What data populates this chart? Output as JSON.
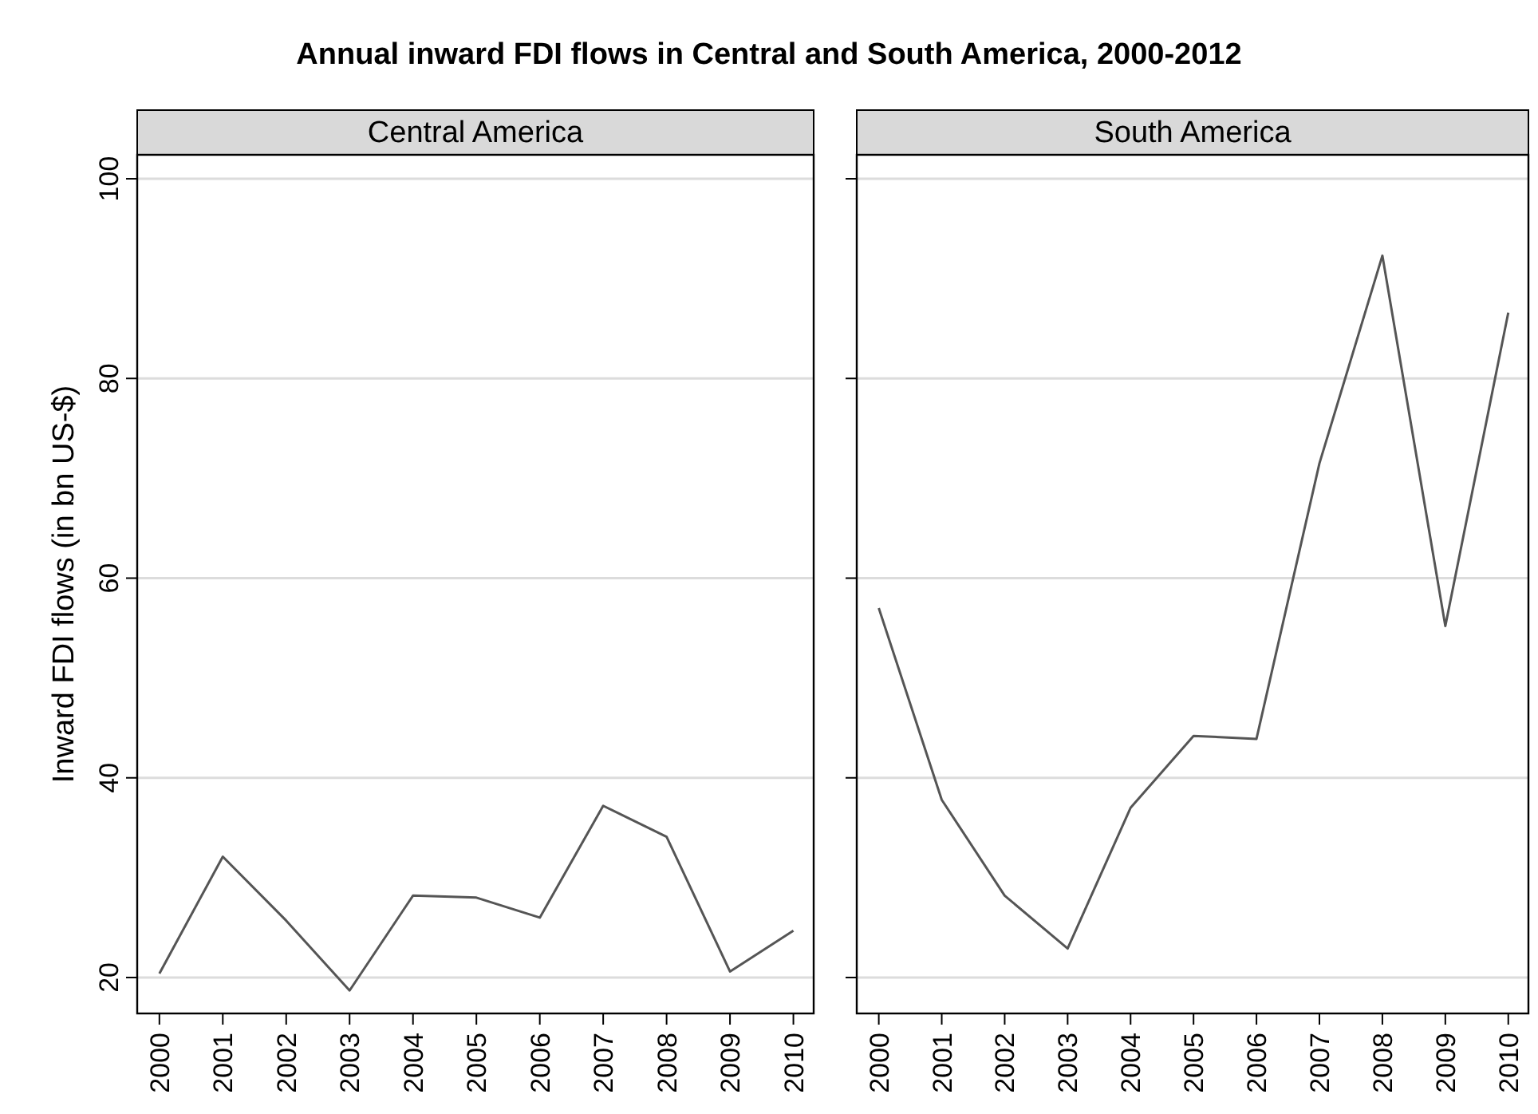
{
  "chart_data": [
    {
      "type": "line",
      "title": "Annual inward FDI flows in Central and South America, 2000-2012",
      "subtitle": "Central America",
      "ylabel": "Inward FDI flows (in bn US-$)",
      "x": [
        2000,
        2001,
        2002,
        2003,
        2004,
        2005,
        2006,
        2007,
        2008,
        2009,
        2010
      ],
      "series": [
        {
          "color": "#555555",
          "values": [
            20.4,
            32.1,
            25.7,
            18.7,
            28.2,
            28.0,
            26.0,
            37.2,
            34.1,
            20.6,
            24.7
          ]
        }
      ],
      "xlim": [
        1999.65,
        2010.32
      ],
      "xticks": [
        2000,
        2001,
        2002,
        2003,
        2004,
        2005,
        2006,
        2007,
        2008,
        2009,
        2010
      ],
      "ylim": [
        16.4,
        102.4
      ],
      "yticks": [
        20,
        40,
        60,
        80,
        100
      ],
      "grid": "y"
    },
    {
      "type": "line",
      "subtitle": "South America",
      "x": [
        2000,
        2001,
        2002,
        2003,
        2004,
        2005,
        2006,
        2007,
        2008,
        2009,
        2010
      ],
      "series": [
        {
          "color": "#555555",
          "values": [
            57.0,
            37.8,
            28.2,
            22.9,
            37.0,
            44.2,
            43.9,
            71.5,
            92.3,
            55.2,
            86.6
          ]
        }
      ],
      "xlim": [
        1999.65,
        2010.32
      ],
      "xticks": [
        2000,
        2001,
        2002,
        2003,
        2004,
        2005,
        2006,
        2007,
        2008,
        2009,
        2010
      ],
      "ylim": [
        16.4,
        102.4
      ],
      "yticks": [
        20,
        40,
        60,
        80,
        100
      ],
      "grid": "y",
      "tick_labels": "x"
    }
  ]
}
